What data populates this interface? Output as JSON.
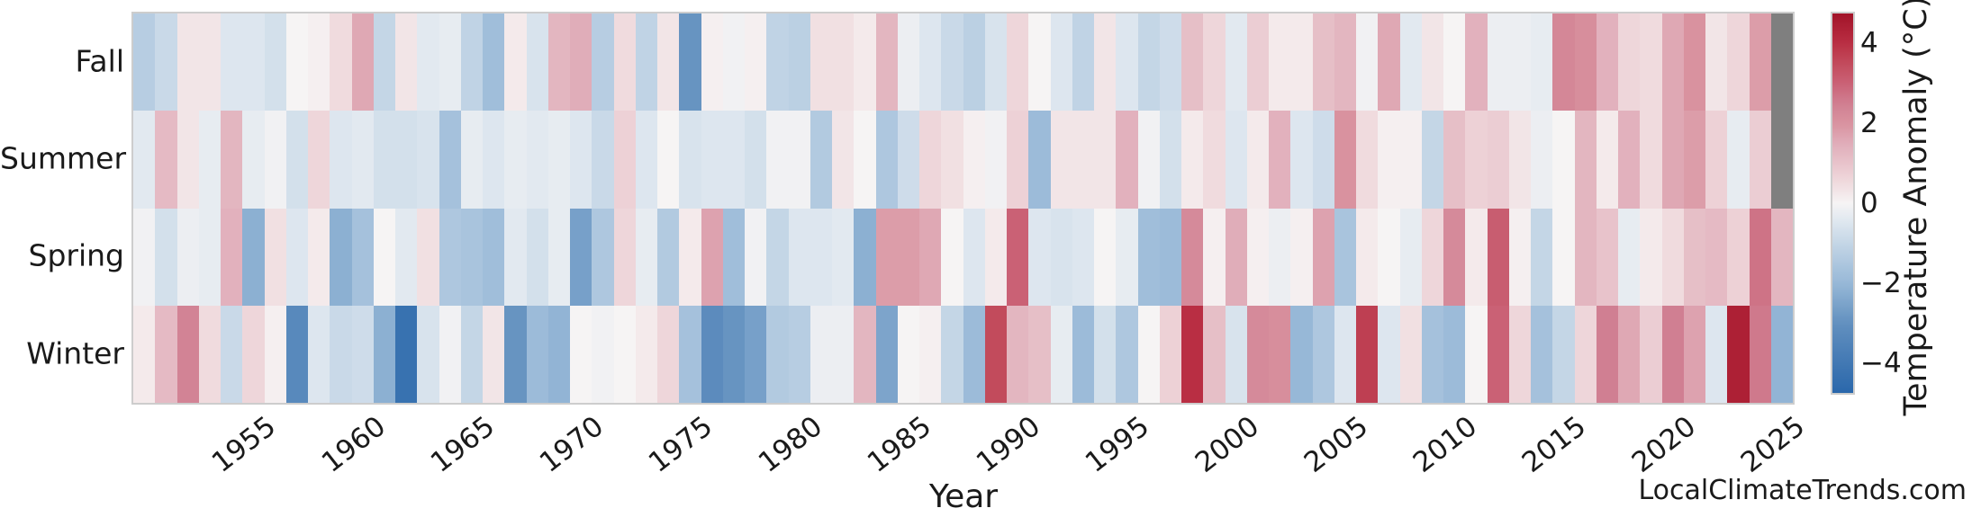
{
  "watermark": "LocalClimateTrends.com",
  "chart_data": {
    "type": "heatmap",
    "title": "",
    "xlabel": "Year",
    "ylabel": "",
    "rows": [
      "Fall",
      "Summer",
      "Spring",
      "Winter"
    ],
    "year_start": 1950,
    "year_end": 2025,
    "x_tick_years": [
      1955,
      1960,
      1965,
      1970,
      1975,
      1980,
      1985,
      1990,
      1995,
      2000,
      2005,
      2010,
      2015,
      2020,
      2025
    ],
    "grid": false,
    "colorbar": {
      "label": "Temperature Anomaly (°C)",
      "tick_labels": [
        "4",
        "2",
        "0",
        "−2",
        "−4"
      ],
      "tick_values": [
        4,
        2,
        0,
        -2,
        -4
      ],
      "vmin": -4.75,
      "vmax": 4.75,
      "colormap": "RdBu_r",
      "missing_color": "#7f7f7f",
      "colormap_stops": [
        [
          -4.75,
          "#2a67ab"
        ],
        [
          -3.0,
          "#6290bf"
        ],
        [
          -2.0,
          "#97b8d7"
        ],
        [
          -1.0,
          "#c4d6e6"
        ],
        [
          -0.5,
          "#dde6ef"
        ],
        [
          0.0,
          "#f6f4f4"
        ],
        [
          0.5,
          "#f0dbde"
        ],
        [
          1.0,
          "#e8c3cb"
        ],
        [
          1.5,
          "#e0adb9"
        ],
        [
          2.0,
          "#d9929f"
        ],
        [
          2.5,
          "#d07f92"
        ],
        [
          3.0,
          "#ca6175"
        ],
        [
          3.5,
          "#c24b5c"
        ],
        [
          4.0,
          "#b92e43"
        ],
        [
          4.75,
          "#a21328"
        ]
      ]
    },
    "series": [
      {
        "name": "Fall",
        "values": [
          -1.3,
          -0.9,
          0.3,
          0.3,
          -0.5,
          -0.5,
          -0.7,
          0.0,
          0.1,
          0.5,
          1.6,
          -1.0,
          0.3,
          -0.4,
          -0.3,
          -1.1,
          -1.8,
          0.2,
          -0.6,
          1.3,
          1.5,
          -1.3,
          0.5,
          -1.1,
          0.3,
          -2.9,
          0.1,
          -0.1,
          0.1,
          -1.1,
          -1.2,
          0.4,
          0.4,
          0.2,
          1.3,
          -0.2,
          -0.5,
          -0.9,
          -1.2,
          -0.6,
          0.6,
          0.0,
          -0.5,
          -1.1,
          0.3,
          -0.5,
          -1.0,
          -0.8,
          1.1,
          0.6,
          -0.4,
          0.8,
          0.2,
          0.2,
          1.1,
          1.3,
          -0.1,
          1.6,
          -0.4,
          0.3,
          0.0,
          1.4,
          -0.2,
          -0.2,
          -0.3,
          2.3,
          2.1,
          1.4,
          0.6,
          0.5,
          1.6,
          2.0,
          0.3,
          0.6,
          1.8,
          null
        ]
      },
      {
        "name": "Summer",
        "values": [
          -0.4,
          1.2,
          0.3,
          -0.3,
          1.3,
          -0.3,
          -0.1,
          -0.7,
          0.6,
          -0.5,
          -0.4,
          -0.7,
          -0.7,
          -0.6,
          -1.7,
          -0.3,
          -0.5,
          -0.3,
          -0.4,
          -0.3,
          -0.5,
          -0.9,
          0.7,
          -0.5,
          0.0,
          -0.6,
          -0.5,
          -0.5,
          -0.7,
          -0.1,
          -0.1,
          -1.4,
          0.3,
          0.0,
          -1.5,
          -0.8,
          0.6,
          0.4,
          0.1,
          -0.1,
          0.7,
          -1.9,
          0.3,
          0.3,
          0.3,
          1.4,
          -0.1,
          -0.7,
          0.2,
          0.5,
          -0.5,
          0.2,
          1.4,
          -0.5,
          -0.8,
          2.0,
          0.5,
          0.1,
          0.1,
          -1.0,
          1.1,
          0.7,
          0.8,
          0.3,
          -0.2,
          0.0,
          1.3,
          0.2,
          1.4,
          0.5,
          1.6,
          1.8,
          0.7,
          -0.3,
          0.8,
          null
        ]
      },
      {
        "name": "Spring",
        "values": [
          -0.1,
          -0.7,
          -0.2,
          -0.3,
          1.4,
          -2.2,
          0.4,
          -0.5,
          0.2,
          -2.2,
          -1.7,
          0.0,
          -0.4,
          0.4,
          -1.5,
          -1.6,
          -1.8,
          -0.4,
          -0.7,
          -0.3,
          -2.6,
          -1.5,
          0.6,
          -0.3,
          -1.4,
          0.2,
          1.7,
          -1.8,
          -0.1,
          -1.0,
          -0.5,
          -0.5,
          -0.4,
          -2.2,
          1.8,
          1.8,
          1.6,
          0.0,
          -0.5,
          0.2,
          3.0,
          -0.5,
          -0.6,
          -0.5,
          0.0,
          -0.3,
          -1.8,
          -1.9,
          2.2,
          0.1,
          1.5,
          0.1,
          -0.2,
          0.1,
          1.7,
          -1.6,
          0.2,
          0.0,
          -0.3,
          0.6,
          2.2,
          0.2,
          3.1,
          0.1,
          -1.0,
          0.0,
          1.3,
          1.0,
          -0.3,
          0.2,
          0.5,
          1.1,
          1.2,
          0.7,
          2.7,
          1.3
        ]
      },
      {
        "name": "Winter",
        "values": [
          0.2,
          1.2,
          2.4,
          0.5,
          -0.9,
          0.6,
          0.1,
          -3.3,
          -0.5,
          -0.9,
          -0.8,
          -2.2,
          -4.3,
          -0.6,
          -0.1,
          -1.0,
          0.3,
          -2.9,
          -1.9,
          -2.1,
          0.0,
          -0.1,
          0.0,
          0.2,
          0.6,
          -1.7,
          -3.2,
          -2.9,
          -2.6,
          -1.4,
          -1.3,
          -0.2,
          -0.2,
          1.3,
          -2.5,
          0.0,
          0.1,
          -1.0,
          -1.9,
          3.5,
          1.3,
          1.1,
          -0.3,
          -1.9,
          -0.7,
          -1.5,
          0.0,
          0.7,
          4.0,
          1.1,
          -0.6,
          2.2,
          2.1,
          -2.0,
          -1.5,
          -0.5,
          3.7,
          -0.5,
          0.4,
          -1.7,
          -1.9,
          0.0,
          3.0,
          0.6,
          -1.7,
          -1.0,
          0.6,
          2.5,
          1.6,
          0.8,
          2.5,
          1.7,
          -0.5,
          4.4,
          2.6,
          -2.1
        ]
      }
    ]
  }
}
